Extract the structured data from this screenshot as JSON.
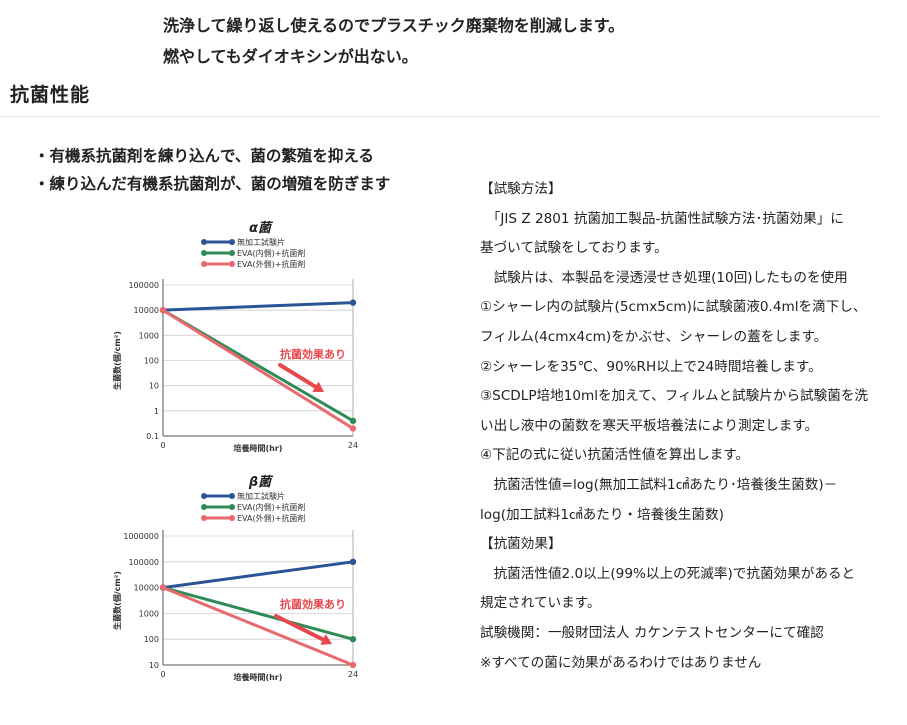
{
  "intro": {
    "lines": [
      "洗浄して繰り返し使えるのでプラスチック廃棄物を削減します。",
      "燃やしてもダイオキシンが出ない。"
    ]
  },
  "section_title": "抗菌性能",
  "features": [
    "・有機系抗菌剤を練り込んで、菌の繁殖を抑える",
    "・練り込んだ有機系抗菌剤が、菌の増殖を防ぎます"
  ],
  "method": {
    "lines": [
      "【試験方法】",
      "　「JIS Z 2801 抗菌加工製品-抗菌性試験方法･抗菌効果」に",
      "基づいて試験をしております。",
      "　試験片は、本製品を浸透浸せき処理(10回)したものを使用",
      "①シャーレ内の試験片(5cmx5cm)に試験菌液0.4mlを滴下し、",
      "フィルム(4cmx4cm)をかぶせ、シャーレの蓋をします。",
      "②シャーレを35℃、90%RH以上で24時間培養します。",
      "③SCDLP培地10mlを加えて、フィルムと試験片から試験菌を洗",
      "い出し液中の菌数を寒天平板培養法により測定します。",
      "④下記の式に従い抗菌活性値を算出します。",
      "　抗菌活性値=log(無加工試料1㎠あたり･培養後生菌数)－",
      "log(加工試料1㎠あたり・培養後生菌数)",
      "【抗菌効果】",
      "　抗菌活性値2.0以上(99%以上の死滅率)で抗菌効果があると",
      "規定されています。",
      "試験機関：一般財団法人 カケンテストセンターにて確認",
      "※すべての菌に効果があるわけではありません"
    ]
  },
  "chart_data": [
    {
      "type": "line",
      "title": "α菌",
      "xlabel": "培養時間(hr)",
      "ylabel": "生菌数(個/cm²)",
      "y_scale": "log",
      "ylim": [
        0.1,
        100000
      ],
      "y_ticks": [
        "100000",
        "10000",
        "1000",
        "100",
        "10",
        "1",
        "0.1"
      ],
      "x": [
        0,
        24
      ],
      "x_ticks": [
        "0",
        "24"
      ],
      "annotation": "抗菌効果あり",
      "grid": true,
      "legend_position": "top-left",
      "series": [
        {
          "name": "無加工試験片",
          "color": "#2a5496",
          "values": [
            10000,
            20000
          ]
        },
        {
          "name": "EVA(内側)+抗菌剤",
          "color": "#2e8b57",
          "values": [
            10000,
            0.4
          ]
        },
        {
          "name": "EVA(外側)+抗菌剤",
          "color": "#e86a6e",
          "values": [
            10000,
            0.2
          ]
        }
      ]
    },
    {
      "type": "line",
      "title": "β菌",
      "xlabel": "培養時間(hr)",
      "ylabel": "生菌数(個/cm²)",
      "y_scale": "log",
      "ylim": [
        10,
        1000000
      ],
      "y_ticks": [
        "1000000",
        "100000",
        "10000",
        "1000",
        "100",
        "10"
      ],
      "x": [
        0,
        24
      ],
      "x_ticks": [
        "0",
        "24"
      ],
      "annotation": "抗菌効果あり",
      "grid": true,
      "legend_position": "top-left",
      "series": [
        {
          "name": "無加工試験片",
          "color": "#2a5496",
          "values": [
            10000,
            100000
          ]
        },
        {
          "name": "EVA(内側)+抗菌剤",
          "color": "#2e8b57",
          "values": [
            10000,
            100
          ]
        },
        {
          "name": "EVA(外側)+抗菌剤",
          "color": "#e86a6e",
          "values": [
            10000,
            10
          ]
        }
      ]
    }
  ]
}
